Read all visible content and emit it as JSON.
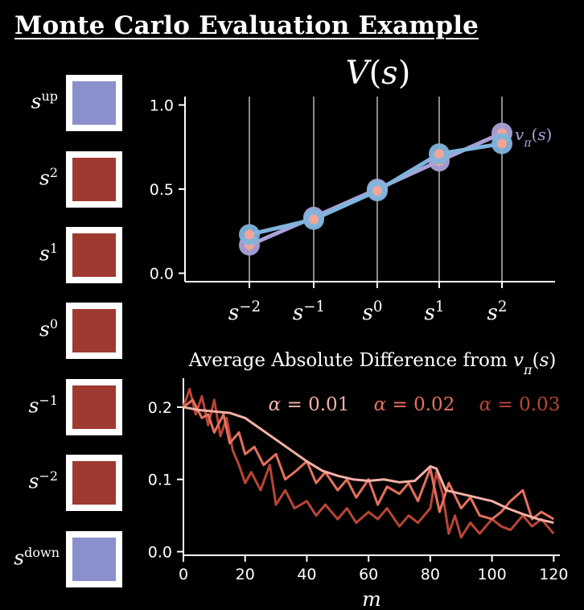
{
  "title": "Monte Carlo Evaluation Example",
  "states": [
    {
      "base": "s",
      "sup": "up",
      "color": "#8a90cc"
    },
    {
      "base": "s",
      "sup": "2",
      "color": "#9e3a30"
    },
    {
      "base": "s",
      "sup": "1",
      "color": "#9e3a30"
    },
    {
      "base": "s",
      "sup": "0",
      "color": "#9e3a30"
    },
    {
      "base": "s",
      "sup": "−1",
      "color": "#9e3a30"
    },
    {
      "base": "s",
      "sup": "−2",
      "color": "#9e3a30"
    },
    {
      "base": "s",
      "sup": "down",
      "color": "#8a90cc"
    }
  ],
  "chart_data": [
    {
      "type": "line",
      "title": "V(s)",
      "categories": [
        "s^-2",
        "s^-1",
        "s^0",
        "s^1",
        "s^2"
      ],
      "category_labels": [
        {
          "base": "s",
          "sup": "−2"
        },
        {
          "base": "s",
          "sup": "−1"
        },
        {
          "base": "s",
          "sup": "0"
        },
        {
          "base": "s",
          "sup": "1"
        },
        {
          "base": "s",
          "sup": "2"
        }
      ],
      "ylim": [
        -0.05,
        1.05
      ],
      "yticks": [
        0.0,
        0.5,
        1.0
      ],
      "ytick_labels": [
        "0.0",
        "0.5",
        "1.0"
      ],
      "grid": "vertical",
      "series": [
        {
          "name": "v_π(s)",
          "label_base": "v",
          "label_sub": "π",
          "label_rest": "(s)",
          "values": [
            0.167,
            0.333,
            0.5,
            0.667,
            0.833
          ],
          "color": "#a9a2d8"
        },
        {
          "name": "",
          "values": [
            0.23,
            0.32,
            0.49,
            0.71,
            0.77
          ],
          "color": "#7fb4dc"
        }
      ],
      "marker_center_color": "#f2a596"
    },
    {
      "type": "line",
      "title_prefix": "Average Absolute Difference from ",
      "title_base": "v",
      "title_sub": "π",
      "title_rest": "(s)",
      "xlabel": "m",
      "xlim": [
        0,
        122
      ],
      "ylim": [
        -0.005,
        0.24
      ],
      "xticks": [
        0,
        20,
        40,
        60,
        80,
        100,
        120
      ],
      "yticks": [
        0.0,
        0.1,
        0.2
      ],
      "ytick_labels": [
        "0.0",
        "0.1",
        "0.2"
      ],
      "legend_placement": "top-right",
      "series": [
        {
          "name": "α = 0.01",
          "color": "#f4b0a6",
          "x": [
            0,
            5,
            10,
            15,
            20,
            25,
            30,
            35,
            40,
            45,
            50,
            55,
            60,
            65,
            70,
            75,
            80,
            82,
            85,
            90,
            95,
            100,
            105,
            110,
            115,
            120
          ],
          "values": [
            0.2,
            0.196,
            0.194,
            0.192,
            0.185,
            0.17,
            0.155,
            0.14,
            0.125,
            0.112,
            0.105,
            0.1,
            0.098,
            0.1,
            0.096,
            0.098,
            0.118,
            0.115,
            0.085,
            0.08,
            0.075,
            0.07,
            0.06,
            0.052,
            0.045,
            0.04
          ]
        },
        {
          "name": "α = 0.02",
          "color": "#e5705e",
          "x": [
            0,
            3,
            6,
            8,
            10,
            13,
            15,
            18,
            20,
            23,
            26,
            30,
            33,
            36,
            40,
            43,
            46,
            50,
            53,
            56,
            60,
            63,
            66,
            70,
            73,
            76,
            80,
            83,
            86,
            90,
            93,
            96,
            100,
            103,
            106,
            110,
            113,
            116,
            120
          ],
          "values": [
            0.2,
            0.21,
            0.185,
            0.19,
            0.165,
            0.19,
            0.15,
            0.165,
            0.135,
            0.145,
            0.12,
            0.135,
            0.1,
            0.11,
            0.125,
            0.095,
            0.11,
            0.085,
            0.1,
            0.075,
            0.1,
            0.065,
            0.09,
            0.08,
            0.095,
            0.07,
            0.115,
            0.055,
            0.095,
            0.06,
            0.075,
            0.05,
            0.045,
            0.055,
            0.07,
            0.085,
            0.045,
            0.055,
            0.045
          ]
        },
        {
          "name": "α = 0.03",
          "color": "#b84537",
          "x": [
            0,
            2,
            4,
            6,
            8,
            10,
            12,
            14,
            16,
            18,
            20,
            22,
            25,
            28,
            30,
            33,
            36,
            40,
            43,
            46,
            50,
            53,
            56,
            60,
            63,
            66,
            70,
            73,
            76,
            80,
            82,
            84,
            86,
            88,
            90,
            93,
            96,
            100,
            103,
            106,
            110,
            113,
            116,
            120
          ],
          "values": [
            0.2,
            0.225,
            0.19,
            0.215,
            0.175,
            0.21,
            0.16,
            0.185,
            0.14,
            0.12,
            0.095,
            0.11,
            0.085,
            0.12,
            0.065,
            0.085,
            0.06,
            0.07,
            0.05,
            0.065,
            0.045,
            0.06,
            0.04,
            0.055,
            0.045,
            0.06,
            0.035,
            0.05,
            0.04,
            0.06,
            0.11,
            0.08,
            0.025,
            0.05,
            0.02,
            0.04,
            0.025,
            0.045,
            0.035,
            0.03,
            0.05,
            0.035,
            0.045,
            0.025
          ]
        }
      ]
    }
  ]
}
